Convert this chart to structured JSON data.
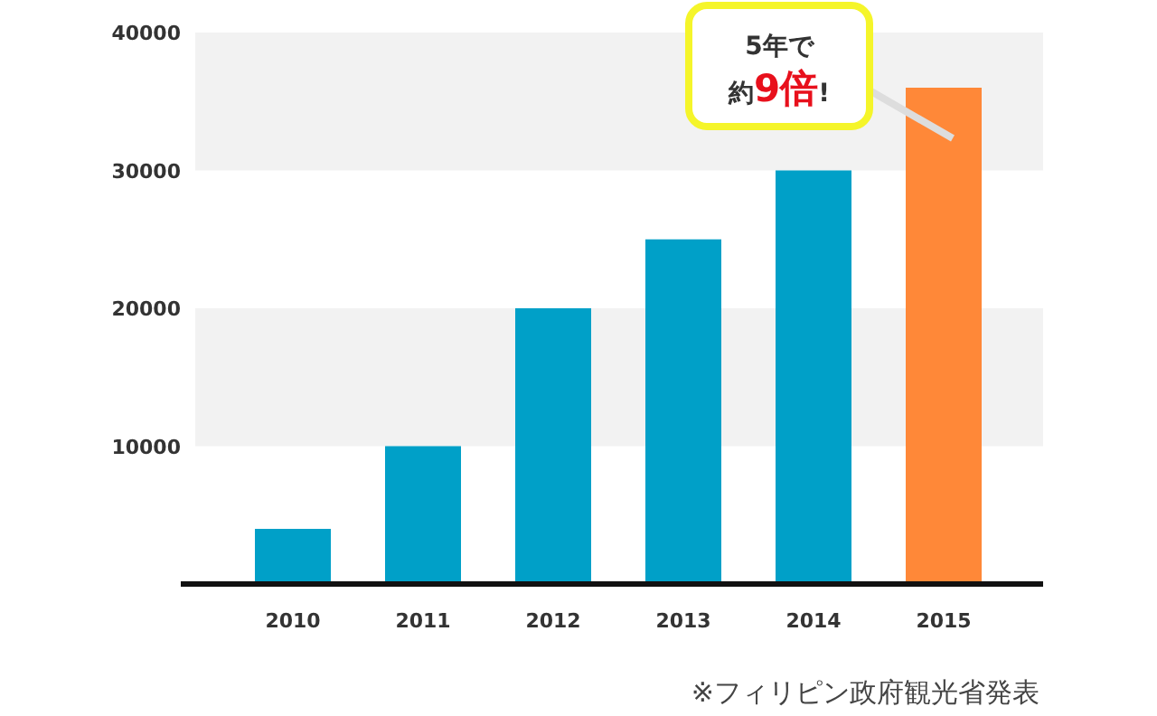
{
  "chart_data": {
    "type": "bar",
    "categories": [
      "2010",
      "2011",
      "2012",
      "2013",
      "2014",
      "2015"
    ],
    "values": [
      4000,
      10000,
      20000,
      25000,
      30000,
      36000
    ],
    "colors": [
      "#00a0c8",
      "#00a0c8",
      "#00a0c8",
      "#00a0c8",
      "#00a0c8",
      "#ff8838"
    ],
    "ylim": [
      0,
      40000
    ],
    "yticks": [
      10000,
      20000,
      30000,
      40000
    ],
    "bands": [
      {
        "axis": "y",
        "from": 10000,
        "to": 20000,
        "color": "#f2f2f2"
      },
      {
        "axis": "y",
        "from": 30000,
        "to": 40000,
        "color": "#f2f2f2"
      }
    ],
    "annotations": [
      "5年で",
      {
        "text": "約**9倍**!",
        "x": "2015",
        "y": 36000
      },
      "※フィリピン政府観光省発表"
    ]
  }
}
